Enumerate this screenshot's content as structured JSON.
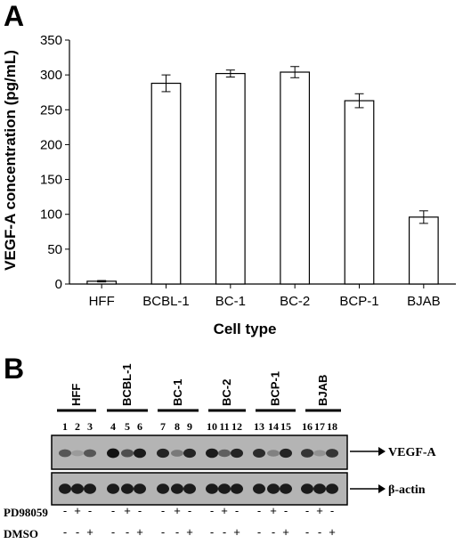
{
  "panel_a_label": "A",
  "panel_b_label": "B",
  "chart_data": {
    "type": "bar",
    "categories": [
      "HFF",
      "BCBL-1",
      "BC-1",
      "BC-2",
      "BCP-1",
      "BJAB"
    ],
    "values": [
      4,
      288,
      302,
      304,
      263,
      96
    ],
    "errors": [
      1,
      12,
      5,
      8,
      10,
      9
    ],
    "xlabel": "Cell type",
    "ylabel": "VEGF-A concentration (pg/mL)",
    "ylim": [
      0,
      350
    ],
    "yticks": [
      0,
      50,
      100,
      150,
      200,
      250,
      300,
      350
    ],
    "grid": false,
    "bar_color": "#ffffff",
    "edge_color": "#000000"
  },
  "blot": {
    "groups": [
      "HFF",
      "BCBL-1",
      "BC-1",
      "BC-2",
      "BCP-1",
      "BJAB"
    ],
    "lanes": [
      "1",
      "2",
      "3",
      "4",
      "5",
      "6",
      "7",
      "8",
      "9",
      "10",
      "11",
      "12",
      "13",
      "14",
      "15",
      "16",
      "17",
      "18"
    ],
    "vegf_intensity": [
      0.55,
      0.15,
      0.55,
      0.95,
      0.6,
      0.9,
      0.85,
      0.35,
      0.85,
      0.9,
      0.5,
      0.85,
      0.8,
      0.3,
      0.85,
      0.75,
      0.2,
      0.75
    ],
    "actin_intensity": [
      0.9,
      0.9,
      0.9,
      0.9,
      0.9,
      0.9,
      0.9,
      0.9,
      0.9,
      0.9,
      0.9,
      0.9,
      0.9,
      0.9,
      0.9,
      0.9,
      0.9,
      0.9
    ],
    "band_labels": {
      "vegf": "VEGF-A",
      "actin": "β-actin"
    },
    "treatments": [
      {
        "label": "PD98059",
        "signs": [
          "-",
          "+",
          "-",
          "-",
          "+",
          "-",
          "-",
          "+",
          "-",
          "-",
          "+",
          "-",
          "-",
          "+",
          "-",
          "-",
          "+",
          "-"
        ]
      },
      {
        "label": "DMSO",
        "signs": [
          "-",
          "-",
          "+",
          "-",
          "-",
          "+",
          "-",
          "-",
          "+",
          "-",
          "-",
          "+",
          "-",
          "-",
          "+",
          "-",
          "-",
          "+"
        ]
      }
    ]
  }
}
